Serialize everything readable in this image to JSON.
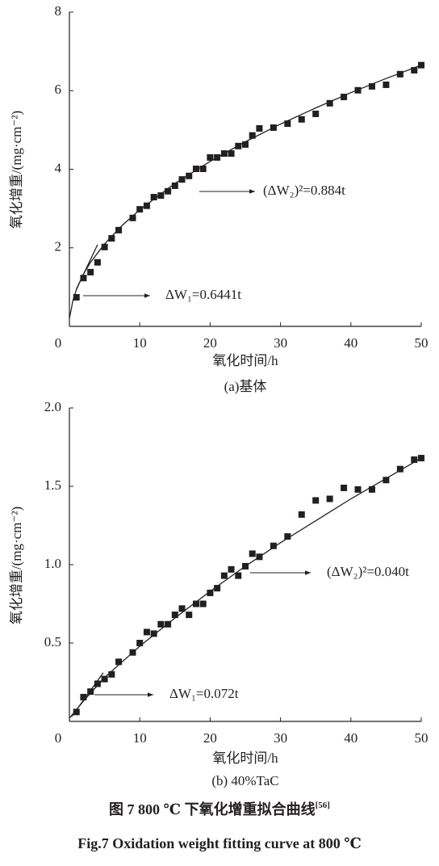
{
  "chart_data": [
    {
      "type": "scatter",
      "subtitle": "(a)基体",
      "xlabel": "氧化时间/h",
      "ylabel": "氧化增重/(mg·cm⁻²)",
      "xlim": [
        0,
        50
      ],
      "ylim": [
        0,
        8
      ],
      "xticks": [
        0,
        10,
        20,
        30,
        40,
        50
      ],
      "yticks": [
        2,
        4,
        6,
        8
      ],
      "x": [
        1,
        2,
        3,
        4,
        5,
        6,
        7,
        9,
        10,
        11,
        12,
        13,
        14,
        15,
        16,
        17,
        18,
        19,
        20,
        21,
        22,
        23,
        24,
        25,
        26,
        27,
        29,
        31,
        33,
        35,
        37,
        39,
        41,
        43,
        45,
        47,
        49,
        50
      ],
      "series": [
        {
          "color": "#231f20",
          "values": [
            0.74,
            1.23,
            1.38,
            1.63,
            2.02,
            2.24,
            2.45,
            2.76,
            2.98,
            3.07,
            3.29,
            3.33,
            3.44,
            3.58,
            3.74,
            3.83,
            4.01,
            4.01,
            4.3,
            4.3,
            4.4,
            4.4,
            4.59,
            4.63,
            4.86,
            5.04,
            5.06,
            5.16,
            5.27,
            5.41,
            5.68,
            5.84,
            6.01,
            6.11,
            6.15,
            6.42,
            6.52,
            6.65
          ]
        }
      ],
      "fits": [
        {
          "x": [
            0,
            0.5,
            1,
            2,
            3,
            5,
            7.5,
            10,
            15,
            20,
            25,
            30,
            35,
            40,
            45,
            50
          ],
          "values": [
            0.2,
            0.66,
            0.94,
            1.33,
            1.63,
            2.1,
            2.57,
            2.97,
            3.64,
            4.2,
            4.7,
            5.15,
            5.56,
            5.95,
            6.31,
            6.65
          ]
        },
        {
          "x": [
            1,
            4
          ],
          "values": [
            0.95,
            2.08
          ]
        }
      ],
      "annotations": [
        "(ΔW₂)²=0.884t",
        "ΔW₁=0.6441t"
      ]
    },
    {
      "type": "scatter",
      "subtitle": "(b) 40%TaC",
      "xlabel": "氧化时间/h",
      "ylabel": "氧化增重/(mg·cm⁻²)",
      "xlim": [
        0,
        50
      ],
      "ylim": [
        0,
        2
      ],
      "xticks": [
        0,
        10,
        20,
        30,
        40,
        50
      ],
      "yticks": [
        0.5,
        {
          "value": 1,
          "label": "1.0"
        },
        1.5,
        {
          "value": 2,
          "label": "2.0"
        }
      ],
      "x": [
        1,
        2,
        3,
        4,
        5,
        6,
        7,
        9,
        10,
        11,
        12,
        13,
        14,
        15,
        16,
        17,
        18,
        19,
        20,
        21,
        22,
        23,
        24,
        25,
        26,
        27,
        29,
        31,
        33,
        35,
        37,
        39,
        41,
        43,
        45,
        47,
        49,
        50
      ],
      "series": [
        {
          "color": "#231f20",
          "values": [
            0.06,
            0.155,
            0.19,
            0.24,
            0.27,
            0.3,
            0.38,
            0.44,
            0.5,
            0.57,
            0.56,
            0.62,
            0.62,
            0.68,
            0.72,
            0.68,
            0.75,
            0.75,
            0.82,
            0.85,
            0.93,
            0.97,
            0.93,
            0.99,
            1.07,
            1.05,
            1.12,
            1.18,
            1.32,
            1.41,
            1.42,
            1.49,
            1.48,
            1.48,
            1.54,
            1.61,
            1.67,
            1.68
          ]
        }
      ],
      "fits": [
        {
          "x": [
            0,
            2,
            5,
            10,
            15,
            20,
            25,
            30,
            35,
            40,
            45,
            50
          ],
          "values": [
            0.02,
            0.13,
            0.28,
            0.48,
            0.66,
            0.83,
            0.99,
            1.14,
            1.28,
            1.42,
            1.55,
            1.68
          ]
        },
        {
          "x": [
            0.3,
            4.8
          ],
          "values": [
            0.03,
            0.31
          ]
        }
      ],
      "annotations": [
        "(ΔW₂)²=0.040t",
        "ΔW₁=0.072t"
      ]
    }
  ],
  "caption": {
    "cn": "图 7   800 ℃ 下氧化增重拟合曲线",
    "cn_ref": "[56]",
    "en": "Fig.7    Oxidation weight fitting curve at 800 ℃"
  }
}
